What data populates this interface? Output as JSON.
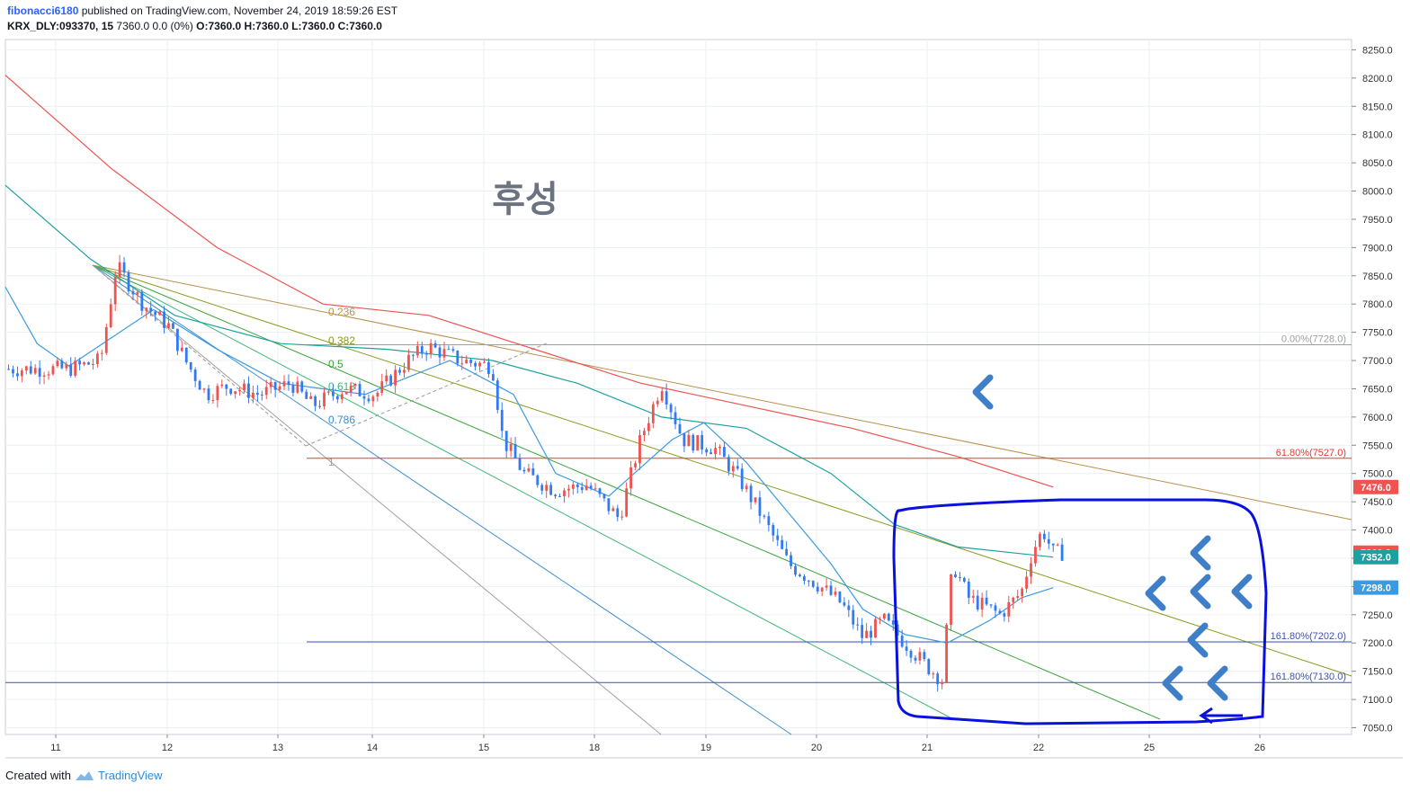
{
  "header": {
    "author": "fibonacci6180",
    "published_text": " published on TradingView.com, November 24, 2019 18:59:26 EST",
    "symbol": "KRX_DLY:093370, 15",
    "quote": "7360.0 0.0 (0%)",
    "ohlc": "O:7360.0 H:7360.0 L:7360.0 C:7360.0"
  },
  "footer": {
    "created_with": "Created with",
    "brand": "TradingView"
  },
  "colors": {
    "up": "#ef5350",
    "down": "#3179f5",
    "ma_long": "#ef5350",
    "ma_mid": "#1fa0a0",
    "ma_fast": "#3c9ae0",
    "drawing": "#0a10e0",
    "arrow": "#3f7fc8",
    "grid": "#eceff2"
  },
  "chart_data": {
    "type": "candlestick",
    "watermark": "후성",
    "ylim": [
      7030,
      8270
    ],
    "y_ticks": [
      "8250.0",
      "8200.0",
      "8150.0",
      "8100.0",
      "8050.0",
      "8000.0",
      "7950.0",
      "7900.0",
      "7850.0",
      "7800.0",
      "7750.0",
      "7700.0",
      "7650.0",
      "7600.0",
      "7550.0",
      "7500.0",
      "7450.0",
      "7400.0",
      "7350.0",
      "7300.0",
      "7250.0",
      "7200.0",
      "7150.0",
      "7100.0",
      "7050.0"
    ],
    "x_ticks": [
      "11",
      "12",
      "13",
      "14",
      "15",
      "18",
      "19",
      "20",
      "21",
      "22",
      "25",
      "26"
    ],
    "price_badges": [
      {
        "label": "7476.0",
        "value": 7476,
        "color": "#ef5350"
      },
      {
        "label": "7360.0",
        "value": 7360,
        "color": "#ef5350"
      },
      {
        "label": "7352.0",
        "value": 7352,
        "color": "#1fa0a0"
      },
      {
        "label": "7298.0",
        "value": 7298,
        "color": "#3c9ae0"
      }
    ],
    "fib_fan_levels": [
      "0.236",
      "0.382",
      "0.5",
      "0.618",
      "0.786",
      "1"
    ],
    "fib_extension_levels": [
      {
        "label": "0.00%(7728.0)",
        "value": 7728,
        "color": "#9e9e9e"
      },
      {
        "label": "61.80%(7527.0)",
        "value": 7527,
        "color": "#e53935"
      },
      {
        "label": "161.80%(7202.0)",
        "value": 7202,
        "color": "#3f51b5"
      },
      {
        "label": "161.80%(7130.0)",
        "value": 7130,
        "color": "#3f51b5"
      }
    ],
    "close_path": [
      {
        "x": 0,
        "y": 7685
      },
      {
        "x": 6,
        "y": 7685
      },
      {
        "x": 9,
        "y": 7700
      },
      {
        "x": 10.5,
        "y": 7868
      },
      {
        "x": 13,
        "y": 7800
      },
      {
        "x": 15.5,
        "y": 7760
      },
      {
        "x": 17,
        "y": 7700
      },
      {
        "x": 19,
        "y": 7640
      },
      {
        "x": 21,
        "y": 7655
      },
      {
        "x": 24,
        "y": 7640
      },
      {
        "x": 27,
        "y": 7660
      },
      {
        "x": 29,
        "y": 7620
      },
      {
        "x": 32,
        "y": 7650
      },
      {
        "x": 35,
        "y": 7640
      },
      {
        "x": 38,
        "y": 7700
      },
      {
        "x": 40,
        "y": 7725
      },
      {
        "x": 43,
        "y": 7700
      },
      {
        "x": 46,
        "y": 7690
      },
      {
        "x": 47,
        "y": 7560
      },
      {
        "x": 49,
        "y": 7500
      },
      {
        "x": 52,
        "y": 7470
      },
      {
        "x": 55,
        "y": 7480
      },
      {
        "x": 58,
        "y": 7420
      },
      {
        "x": 60,
        "y": 7560
      },
      {
        "x": 62,
        "y": 7660
      },
      {
        "x": 64,
        "y": 7560
      },
      {
        "x": 67,
        "y": 7545
      },
      {
        "x": 69,
        "y": 7500
      },
      {
        "x": 71,
        "y": 7440
      },
      {
        "x": 74,
        "y": 7340
      },
      {
        "x": 77,
        "y": 7300
      },
      {
        "x": 79,
        "y": 7270
      },
      {
        "x": 81,
        "y": 7210
      },
      {
        "x": 83,
        "y": 7240
      },
      {
        "x": 85,
        "y": 7200
      },
      {
        "x": 87,
        "y": 7160
      },
      {
        "x": 88.5,
        "y": 7135
      },
      {
        "x": 89.5,
        "y": 7340
      },
      {
        "x": 91,
        "y": 7280
      },
      {
        "x": 94,
        "y": 7250
      },
      {
        "x": 96,
        "y": 7290
      },
      {
        "x": 97,
        "y": 7360
      },
      {
        "x": 98,
        "y": 7400
      },
      {
        "x": 99,
        "y": 7360
      },
      {
        "x": 100,
        "y": 7360
      }
    ],
    "ma_long": [
      {
        "x": 0,
        "y": 8205
      },
      {
        "x": 10,
        "y": 8040
      },
      {
        "x": 20,
        "y": 7900
      },
      {
        "x": 30,
        "y": 7800
      },
      {
        "x": 40,
        "y": 7780
      },
      {
        "x": 50,
        "y": 7720
      },
      {
        "x": 60,
        "y": 7660
      },
      {
        "x": 70,
        "y": 7620
      },
      {
        "x": 80,
        "y": 7580
      },
      {
        "x": 90,
        "y": 7530
      },
      {
        "x": 99,
        "y": 7476
      }
    ],
    "ma_mid": [
      {
        "x": 0,
        "y": 8010
      },
      {
        "x": 8,
        "y": 7880
      },
      {
        "x": 16,
        "y": 7780
      },
      {
        "x": 26,
        "y": 7730
      },
      {
        "x": 36,
        "y": 7720
      },
      {
        "x": 46,
        "y": 7700
      },
      {
        "x": 54,
        "y": 7660
      },
      {
        "x": 62,
        "y": 7600
      },
      {
        "x": 70,
        "y": 7580
      },
      {
        "x": 78,
        "y": 7500
      },
      {
        "x": 84,
        "y": 7410
      },
      {
        "x": 90,
        "y": 7370
      },
      {
        "x": 99,
        "y": 7352
      }
    ],
    "ma_fast": [
      {
        "x": 0,
        "y": 7830
      },
      {
        "x": 3,
        "y": 7730
      },
      {
        "x": 6,
        "y": 7690
      },
      {
        "x": 10,
        "y": 7740
      },
      {
        "x": 14,
        "y": 7790
      },
      {
        "x": 20,
        "y": 7720
      },
      {
        "x": 26,
        "y": 7660
      },
      {
        "x": 34,
        "y": 7640
      },
      {
        "x": 42,
        "y": 7700
      },
      {
        "x": 48,
        "y": 7640
      },
      {
        "x": 52,
        "y": 7500
      },
      {
        "x": 57,
        "y": 7460
      },
      {
        "x": 60,
        "y": 7510
      },
      {
        "x": 63,
        "y": 7560
      },
      {
        "x": 66,
        "y": 7590
      },
      {
        "x": 70,
        "y": 7520
      },
      {
        "x": 74,
        "y": 7430
      },
      {
        "x": 78,
        "y": 7340
      },
      {
        "x": 81,
        "y": 7260
      },
      {
        "x": 85,
        "y": 7215
      },
      {
        "x": 89,
        "y": 7200
      },
      {
        "x": 93,
        "y": 7240
      },
      {
        "x": 96,
        "y": 7280
      },
      {
        "x": 99,
        "y": 7298
      }
    ]
  }
}
